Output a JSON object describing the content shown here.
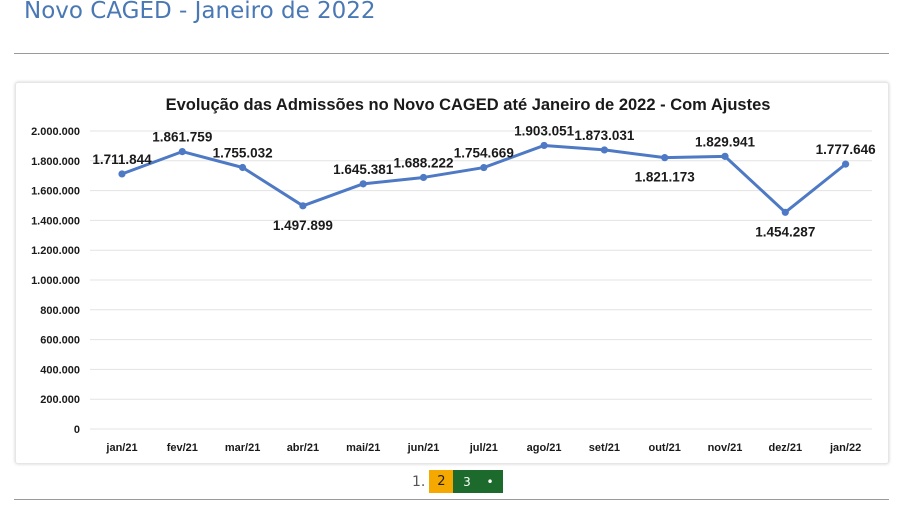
{
  "page": {
    "title": "Novo CAGED - Janeiro de 2022"
  },
  "pager": {
    "prefix": "1.",
    "active": "2",
    "next": "3",
    "dot": "•"
  },
  "colors": {
    "line": "#4e79c4",
    "title": "#4a78b5",
    "pager_active": "#f5a800",
    "pager_nav": "#1c6b2c"
  },
  "chart_data": {
    "type": "line",
    "title": "Evolução das Admissões no Novo CAGED até Janeiro de 2022 - Com Ajustes",
    "categories": [
      "jan/21",
      "fev/21",
      "mar/21",
      "abr/21",
      "mai/21",
      "jun/21",
      "jul/21",
      "ago/21",
      "set/21",
      "out/21",
      "nov/21",
      "dez/21",
      "jan/22"
    ],
    "values": [
      1711844,
      1861759,
      1755032,
      1497899,
      1645381,
      1688222,
      1754669,
      1903051,
      1873031,
      1821173,
      1829941,
      1454287,
      1777646
    ],
    "data_labels": [
      "1.711.844",
      "1.861.759",
      "1.755.032",
      "1.497.899",
      "1.645.381",
      "1.688.222",
      "1.754.669",
      "1.903.051",
      "1.873.031",
      "1.821.173",
      "1.829.941",
      "1.454.287",
      "1.777.646"
    ],
    "label_positions": [
      "above",
      "above",
      "above",
      "below",
      "above",
      "above",
      "above",
      "above",
      "above",
      "below",
      "above",
      "below",
      "above"
    ],
    "ylim": [
      0,
      2000000
    ],
    "yticks": [
      0,
      200000,
      400000,
      600000,
      800000,
      1000000,
      1200000,
      1400000,
      1600000,
      1800000,
      2000000
    ],
    "ytick_labels": [
      "0",
      "200.000",
      "400.000",
      "600.000",
      "800.000",
      "1.000.000",
      "1.200.000",
      "1.400.000",
      "1.600.000",
      "1.800.000",
      "2.000.000"
    ],
    "grid": true,
    "legend": "none"
  }
}
